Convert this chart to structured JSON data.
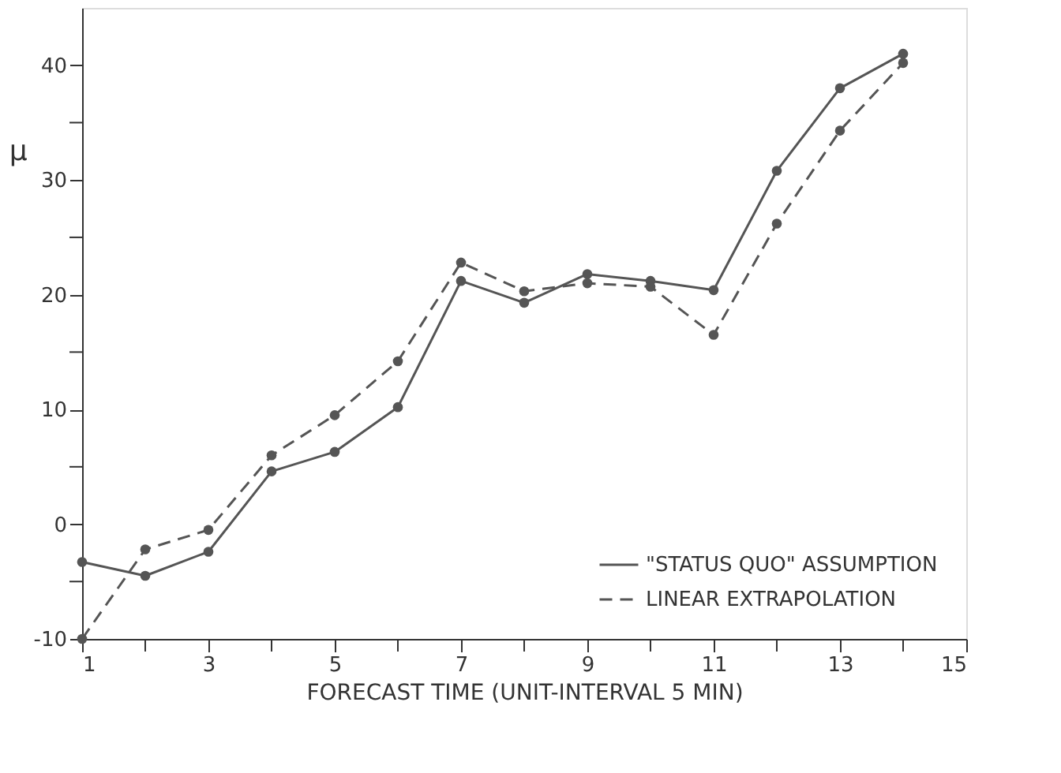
{
  "chart_data": {
    "type": "line",
    "xlabel": "FORECAST TIME (UNIT-INTERVAL 5 MIN)",
    "ylabel": "μ",
    "x": [
      1,
      2,
      3,
      4,
      5,
      6,
      7,
      8,
      9,
      10,
      11,
      12,
      13,
      14
    ],
    "series": [
      {
        "name": "\"STATUS QUO\" ASSUMPTION",
        "color": "#555555",
        "line_style": "solid",
        "values": [
          -3.3,
          -4.5,
          -2.4,
          4.6,
          6.3,
          10.2,
          21.2,
          19.3,
          21.8,
          21.2,
          20.4,
          30.8,
          38,
          41
        ]
      },
      {
        "name": "LINEAR EXTRAPOLATION",
        "color": "#555555",
        "line_style": "dashed",
        "values": [
          -10,
          -2.2,
          -0.5,
          6,
          9.5,
          14.2,
          22.8,
          20.3,
          21,
          20.7,
          16.5,
          26.2,
          34.3,
          40.2
        ]
      }
    ],
    "xlim": [
      1,
      15
    ],
    "ylim": [
      -10,
      45
    ],
    "xticks": [
      1,
      {
        "value": 2,
        "label": null
      },
      3,
      {
        "value": 4,
        "label": null
      },
      5,
      {
        "value": 6,
        "label": null
      },
      7,
      {
        "value": 8,
        "label": null
      },
      9,
      {
        "value": 10,
        "label": null
      },
      11,
      {
        "value": 12,
        "label": null
      },
      13,
      {
        "value": 14,
        "label": null
      },
      15
    ],
    "yticks": [
      -10,
      {
        "value": -5,
        "label": null
      },
      0,
      {
        "value": 5,
        "label": null
      },
      10,
      {
        "value": 15,
        "label": null
      },
      20,
      {
        "value": 25,
        "label": null
      },
      30,
      {
        "value": 35,
        "label": null
      },
      40
    ],
    "marker": "circle",
    "grid": false,
    "legend": "bottom right"
  }
}
